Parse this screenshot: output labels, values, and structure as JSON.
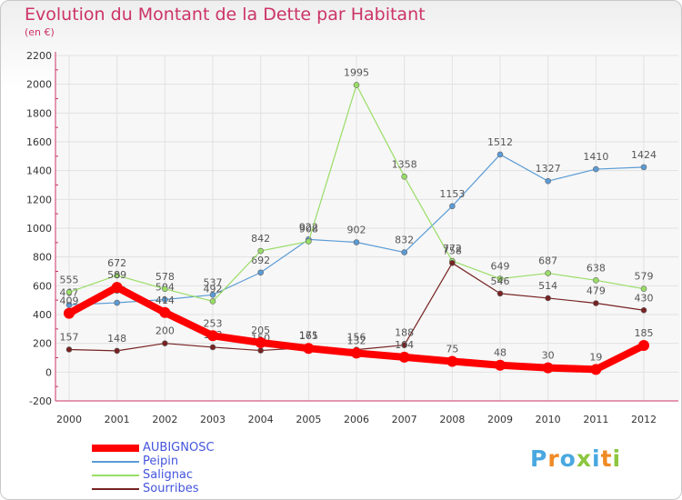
{
  "title": "Evolution du Montant de la Dette par Habitant",
  "subtitle": "(en €)",
  "logo": {
    "letters": [
      {
        "char": "P",
        "color": "#4aa8e0"
      },
      {
        "char": "r",
        "color": "#f08a24"
      },
      {
        "char": "o",
        "color": "#4aa8e0"
      },
      {
        "char": "x",
        "color": "#8cc63f"
      },
      {
        "char": "i",
        "color": "#4aa8e0"
      },
      {
        "char": "t",
        "color": "#f08a24"
      },
      {
        "char": "i",
        "color": "#8cc63f"
      }
    ]
  },
  "chart_data": {
    "type": "line",
    "x": [
      "2000",
      "2001",
      "2002",
      "2003",
      "2004",
      "2005",
      "2006",
      "2007",
      "2008",
      "2009",
      "2010",
      "2011",
      "2012"
    ],
    "ylim": [
      -200,
      2200
    ],
    "yticks": [
      "-200",
      "0",
      "200",
      "400",
      "600",
      "800",
      "1000",
      "1200",
      "1400",
      "1600",
      "1800",
      "2000",
      "2200"
    ],
    "grid": true,
    "legend_position": "bottom-left",
    "series": [
      {
        "name": "Peipin",
        "color": "#5b9bd5",
        "width": 1.2,
        "marker": 3,
        "values": [
          467,
          482,
          504,
          537,
          692,
          922,
          902,
          832,
          1153,
          1512,
          1327,
          1410,
          1424
        ],
        "labels": [
          "467",
          "482",
          "504",
          "537",
          "692",
          "922",
          "902",
          "832",
          "1153",
          "1512",
          "1327",
          "1410",
          "1424"
        ]
      },
      {
        "name": "Salignac",
        "color": "#99dd66",
        "width": 1.2,
        "marker": 3,
        "values": [
          555,
          672,
          578,
          492,
          842,
          908,
          1995,
          1358,
          772,
          649,
          687,
          638,
          579
        ],
        "labels": [
          "555",
          "672",
          "578",
          "492",
          "842",
          "908",
          "1995",
          "1358",
          "772",
          "649",
          "687",
          "638",
          "579"
        ]
      },
      {
        "name": "Sourribes",
        "color": "#772222",
        "width": 1.2,
        "marker": 3,
        "values": [
          157,
          148,
          200,
          173,
          150,
          171,
          156,
          188,
          758,
          546,
          514,
          479,
          430
        ],
        "labels": [
          "157",
          "148",
          "200",
          "173",
          "150",
          "171",
          "156",
          "188",
          "758",
          "546",
          "514",
          "479",
          "430"
        ]
      },
      {
        "name": "AUBIGNOSC",
        "color": "#ff0000",
        "width": 8,
        "marker": 6,
        "values": [
          409,
          589,
          414,
          253,
          205,
          165,
          132,
          104,
          75,
          48,
          30,
          19,
          185
        ],
        "labels": [
          "409",
          "589",
          "414",
          "253",
          "205",
          "165",
          "132",
          "104",
          "75",
          "48",
          "30",
          "19",
          "185"
        ]
      }
    ],
    "legend_order": [
      "AUBIGNOSC",
      "Peipin",
      "Salignac",
      "Sourribes"
    ]
  }
}
